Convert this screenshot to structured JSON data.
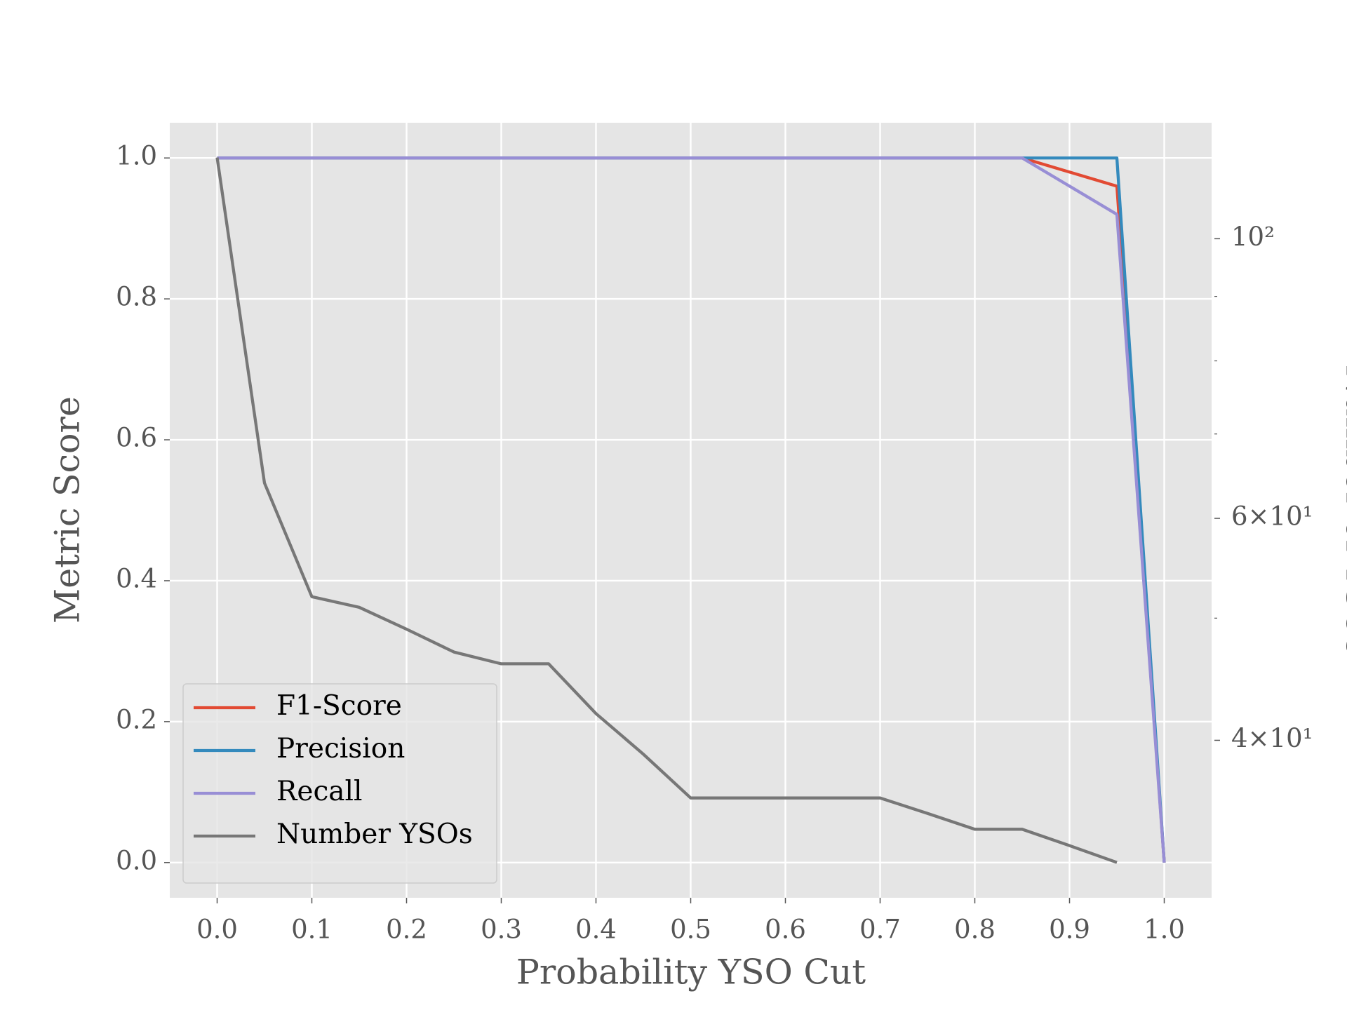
{
  "chart_data": {
    "type": "line",
    "xlabel": "Probability YSO Cut",
    "ylabel": "Metric Score",
    "y2label": "Number of YSOs",
    "x": [
      0.0,
      0.05,
      0.1,
      0.15,
      0.2,
      0.25,
      0.3,
      0.35,
      0.4,
      0.45,
      0.5,
      0.55,
      0.6,
      0.65,
      0.7,
      0.75,
      0.8,
      0.85,
      0.9,
      0.95,
      1.0
    ],
    "series": [
      {
        "name": "F1-Score",
        "color": "#E24A33",
        "values": [
          1,
          1,
          1,
          1,
          1,
          1,
          1,
          1,
          1,
          1,
          1,
          1,
          1,
          1,
          1,
          1,
          1,
          1,
          0.98,
          0.96,
          0
        ]
      },
      {
        "name": "Precision",
        "color": "#348ABD",
        "values": [
          1,
          1,
          1,
          1,
          1,
          1,
          1,
          1,
          1,
          1,
          1,
          1,
          1,
          1,
          1,
          1,
          1,
          1,
          1,
          1,
          0
        ]
      },
      {
        "name": "Recall",
        "color": "#988ED5",
        "values": [
          1,
          1,
          1,
          1,
          1,
          1,
          1,
          1,
          1,
          1,
          1,
          1,
          1,
          1,
          1,
          1,
          1,
          1,
          0.96,
          0.92,
          0
        ]
      },
      {
        "name": "Number YSOs",
        "color": "#777777",
        "axis": "y2",
        "values": [
          116,
          64,
          52,
          51,
          49,
          47,
          46,
          46,
          42,
          39,
          36,
          36,
          36,
          36,
          36,
          35,
          34,
          34,
          33,
          32,
          null
        ]
      }
    ],
    "xlim": [
      -0.05,
      1.05
    ],
    "xticks": [
      {
        "value": 0,
        "label": "0.0"
      },
      {
        "value": 0.1,
        "label": "0.1"
      },
      {
        "value": 0.2,
        "label": "0.2"
      },
      {
        "value": 0.3,
        "label": "0.3"
      },
      {
        "value": 0.4,
        "label": "0.4"
      },
      {
        "value": 0.5,
        "label": "0.5"
      },
      {
        "value": 0.6,
        "label": "0.6"
      },
      {
        "value": 0.7,
        "label": "0.7"
      },
      {
        "value": 0.8,
        "label": "0.8"
      },
      {
        "value": 0.9,
        "label": "0.9"
      },
      {
        "value": 1,
        "label": "1.0"
      }
    ],
    "ylim": [
      -0.05,
      1.05
    ],
    "yticks": [
      {
        "value": 0,
        "label": "0.0"
      },
      {
        "value": 0.2,
        "label": "0.2"
      },
      {
        "value": 0.4,
        "label": "0.4"
      },
      {
        "value": 0.6,
        "label": "0.6"
      },
      {
        "value": 0.8,
        "label": "0.8"
      },
      {
        "value": 1,
        "label": "1.0"
      }
    ],
    "y2lim": [
      30.0,
      123.6
    ],
    "y2log": true,
    "y2ticks": [
      {
        "value": 40,
        "label": "4×10¹"
      },
      {
        "value": 60,
        "label": "6×10¹"
      },
      {
        "value": 100,
        "label": "10²"
      }
    ],
    "y2minorticks": [
      50,
      70,
      80,
      90
    ],
    "grid": true,
    "legend": "lower left"
  }
}
